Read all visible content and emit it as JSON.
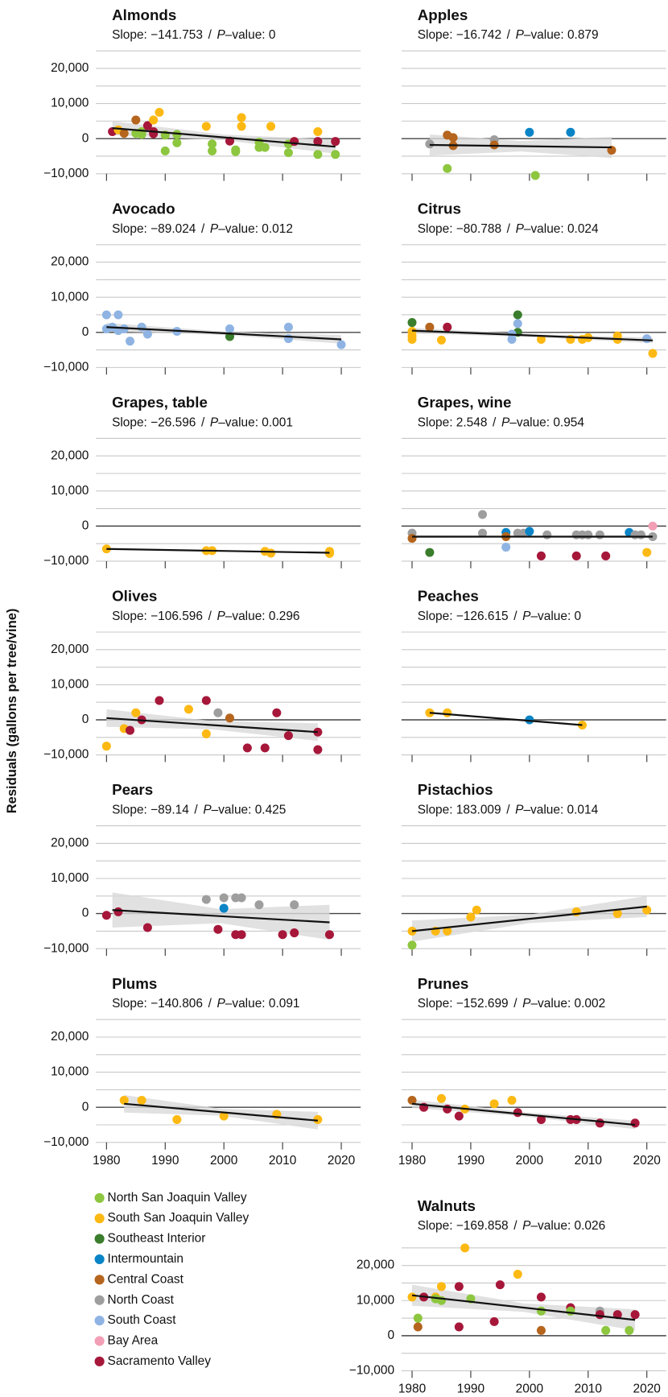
{
  "y_label": "Residuals (gallons per tree/vine)",
  "separator": "/",
  "p_symbol": "P",
  "shared_axes": {
    "xlim": [
      1978.2,
      2023.3
    ],
    "xticks": [
      1980,
      1990,
      2000,
      2010,
      2020
    ],
    "ylim": [
      -10000,
      25000
    ],
    "yticks": [
      {
        "value": -10000,
        "label": "−10,000"
      },
      0,
      {
        "value": 10000,
        "label": "10,000"
      },
      {
        "value": 20000,
        "label": "20,000"
      }
    ],
    "ygrid": [
      -5000,
      5000,
      15000,
      25000
    ]
  },
  "regions": [
    {
      "name": "North San Joaquin Valley",
      "color": "#8dc63f"
    },
    {
      "name": "South San Joaquin Valley",
      "color": "#fdb913"
    },
    {
      "name": "Southeast Interior",
      "color": "#3a7d2c"
    },
    {
      "name": "Intermountain",
      "color": "#0a84c6"
    },
    {
      "name": "Central Coast",
      "color": "#b5651d"
    },
    {
      "name": "North Coast",
      "color": "#9e9e9e"
    },
    {
      "name": "South Coast",
      "color": "#8fb4e3"
    },
    {
      "name": "Bay Area",
      "color": "#f29fb5"
    },
    {
      "name": "Sacramento Valley",
      "color": "#a6173a"
    }
  ],
  "chart_data": [
    {
      "type": "scatter",
      "title": "Almonds",
      "slope_text": "Slope: −141.753",
      "p_value_text": "–value: 0",
      "points": {
        "x": [
          1981,
          1982,
          1983,
          1985,
          1985,
          1986,
          1986,
          1987,
          1988,
          1988,
          1989,
          1988,
          1990,
          1990,
          1992,
          1992,
          1997,
          1998,
          1998,
          2001,
          2002,
          2002,
          2003,
          2003,
          2006,
          2006,
          2007,
          2008,
          2011,
          2011,
          2012,
          2016,
          2016,
          2016,
          2019,
          2019
        ],
        "y": [
          2000,
          2500,
          1500,
          5300,
          1500,
          1200,
          2000,
          3700,
          1400,
          5300,
          7500,
          2000,
          -3500,
          1000,
          1200,
          -1200,
          3500,
          -1500,
          -3500,
          -700,
          -3200,
          -3700,
          6000,
          3500,
          -2500,
          -1000,
          -2500,
          3500,
          -1500,
          -4000,
          -800,
          2000,
          -800,
          -4500,
          -800,
          -4500
        ],
        "region": [
          8,
          1,
          4,
          4,
          0,
          0,
          0,
          8,
          8,
          1,
          1,
          8,
          0,
          0,
          0,
          0,
          1,
          0,
          0,
          8,
          0,
          0,
          1,
          1,
          0,
          0,
          0,
          1,
          0,
          0,
          8,
          1,
          8,
          0,
          8,
          0
        ]
      },
      "fit": {
        "x": [
          1981,
          2019
        ],
        "y": [
          3000,
          -2300
        ]
      },
      "band": {
        "x": [
          1981,
          2000,
          2019
        ],
        "upper": [
          5000,
          1150,
          -300
        ],
        "lower": [
          1000,
          -450,
          -4300
        ]
      }
    },
    {
      "type": "scatter",
      "title": "Apples",
      "slope_text": "Slope: −16.742",
      "p_value_text": "–value: 0.879",
      "points": {
        "x": [
          1983,
          1986,
          1987,
          1987,
          1986,
          1994,
          1994,
          2000,
          2007,
          2001,
          2014
        ],
        "y": [
          -1500,
          1000,
          300,
          -2000,
          -8500,
          -300,
          -1800,
          1800,
          1800,
          -10500,
          -3300
        ],
        "region": [
          5,
          4,
          4,
          4,
          0,
          5,
          4,
          3,
          3,
          0,
          4
        ]
      },
      "fit": {
        "x": [
          1983,
          2014
        ],
        "y": [
          -1800,
          -2500
        ]
      },
      "band": {
        "x": [
          1983,
          1998.5,
          2014
        ],
        "upper": [
          1200,
          -650,
          500
        ],
        "lower": [
          -4800,
          -3650,
          -5500
        ]
      }
    },
    {
      "type": "scatter",
      "title": "Avocado",
      "slope_text": "Slope: −89.024",
      "p_value_text": "–value: 0.012",
      "points": {
        "x": [
          1980,
          1980,
          1981,
          1982,
          1982,
          1983,
          1984,
          1986,
          1987,
          1992,
          2001,
          2001,
          2011,
          2011,
          2020
        ],
        "y": [
          5000,
          1000,
          1500,
          5000,
          500,
          1000,
          -2500,
          1500,
          -500,
          300,
          1000,
          -1200,
          1500,
          -1800,
          -3500
        ],
        "region": [
          6,
          6,
          6,
          6,
          6,
          6,
          6,
          6,
          6,
          6,
          6,
          2,
          6,
          6,
          6
        ]
      },
      "fit": {
        "x": [
          1980,
          2020
        ],
        "y": [
          1500,
          -2000
        ]
      },
      "band": {
        "x": [
          1980,
          2000,
          2020
        ],
        "upper": [
          2700,
          250,
          -800
        ],
        "lower": [
          300,
          -750,
          -3200
        ]
      }
    },
    {
      "type": "scatter",
      "title": "Citrus",
      "slope_text": "Slope: −80.788",
      "p_value_text": "–value: 0.024",
      "points": {
        "x": [
          1980,
          1980,
          1980,
          1980,
          1983,
          1985,
          1986,
          1998,
          1998,
          1998,
          1997,
          1997,
          2002,
          2007,
          2009,
          2010,
          2015,
          2015,
          2020,
          2021
        ],
        "y": [
          2800,
          300,
          -1000,
          -2000,
          1500,
          -2200,
          1500,
          5000,
          2500,
          0,
          -500,
          -2000,
          -2000,
          -2000,
          -2000,
          -1500,
          -2000,
          -1000,
          -1800,
          -6000
        ],
        "region": [
          2,
          1,
          1,
          1,
          4,
          1,
          8,
          2,
          6,
          2,
          6,
          6,
          1,
          1,
          1,
          1,
          1,
          1,
          6,
          1
        ]
      },
      "fit": {
        "x": [
          1980,
          2021
        ],
        "y": [
          500,
          -2300
        ]
      },
      "band": {
        "x": [
          1980,
          2000.5,
          2021
        ],
        "upper": [
          1300,
          -500,
          -1500
        ],
        "lower": [
          -300,
          -1300,
          -3100
        ]
      }
    },
    {
      "type": "scatter",
      "title": "Grapes, table",
      "slope_text": "Slope: −26.596",
      "p_value_text": "–value: 0.001",
      "points": {
        "x": [
          1980,
          1997,
          1998,
          2007,
          2008,
          2018,
          2018
        ],
        "y": [
          -6500,
          -7000,
          -7000,
          -7200,
          -7700,
          -7200,
          -7800
        ],
        "region": [
          1,
          1,
          1,
          1,
          1,
          1,
          1
        ]
      },
      "fit": {
        "x": [
          1980,
          2018
        ],
        "y": [
          -6500,
          -7600
        ]
      },
      "band": {
        "x": [
          1980,
          1999,
          2018
        ],
        "upper": [
          -6300,
          -6850,
          -7400
        ],
        "lower": [
          -6700,
          -7250,
          -7800
        ]
      }
    },
    {
      "type": "scatter",
      "title": "Grapes, wine",
      "slope_text": "Slope: 2.548",
      "p_value_text": "–value: 0.954",
      "points": {
        "x": [
          1980,
          1980,
          1983,
          1992,
          1992,
          1996,
          1996,
          1996,
          1998,
          1999,
          2000,
          2002,
          2003,
          2008,
          2008,
          2009,
          2010,
          2012,
          2013,
          2017,
          2018,
          2019,
          2020,
          2021,
          2021
        ],
        "y": [
          -2000,
          -3500,
          -7500,
          3300,
          -2000,
          -1800,
          -3000,
          -6000,
          -2000,
          -2000,
          -1500,
          -8500,
          -2500,
          -2500,
          -8500,
          -2500,
          -2500,
          -2500,
          -8500,
          -1800,
          -2500,
          -2500,
          -7500,
          0,
          -3000
        ],
        "region": [
          5,
          4,
          2,
          5,
          5,
          3,
          4,
          6,
          5,
          5,
          3,
          8,
          5,
          5,
          8,
          5,
          5,
          5,
          8,
          3,
          5,
          5,
          1,
          7,
          5
        ]
      },
      "fit": {
        "x": [
          1980,
          2021
        ],
        "y": [
          -3000,
          -3000
        ]
      },
      "band": {
        "x": [
          1980,
          2000.5,
          2021
        ],
        "upper": [
          -2600,
          -2800,
          -2600
        ],
        "lower": [
          -3400,
          -3200,
          -3400
        ]
      }
    },
    {
      "type": "scatter",
      "title": "Olives",
      "slope_text": "Slope: −106.596",
      "p_value_text": "–value: 0.296",
      "points": {
        "x": [
          1980,
          1983,
          1984,
          1985,
          1986,
          1989,
          1994,
          1997,
          1997,
          1999,
          2001,
          2004,
          2007,
          2009,
          2011,
          2016,
          2016
        ],
        "y": [
          -7500,
          -2500,
          -3000,
          2000,
          0,
          5500,
          3000,
          5500,
          -4000,
          2000,
          500,
          -8000,
          -8000,
          2000,
          -4500,
          -3500,
          -8500
        ],
        "region": [
          1,
          1,
          8,
          1,
          8,
          8,
          1,
          8,
          1,
          5,
          4,
          8,
          8,
          8,
          8,
          8,
          8
        ]
      },
      "fit": {
        "x": [
          1980,
          2016
        ],
        "y": [
          500,
          -3500
        ]
      },
      "band": {
        "x": [
          1980,
          1998,
          2016
        ],
        "upper": [
          3000,
          -300,
          -1000
        ],
        "lower": [
          -2000,
          -2700,
          -6000
        ]
      }
    },
    {
      "type": "scatter",
      "title": "Peaches",
      "slope_text": "Slope: −126.615",
      "p_value_text": "–value: 0",
      "points": {
        "x": [
          1983,
          1986,
          2000,
          2009
        ],
        "y": [
          2000,
          2000,
          0,
          -1500
        ],
        "region": [
          1,
          1,
          3,
          1
        ]
      },
      "fit": {
        "x": [
          1983,
          2009
        ],
        "y": [
          2000,
          -1500
        ]
      }
    },
    {
      "type": "scatter",
      "title": "Pears",
      "slope_text": "Slope: −89.14",
      "p_value_text": "–value: 0.425",
      "points": {
        "x": [
          1980,
          1982,
          1987,
          1997,
          2000,
          2000,
          1999,
          2002,
          2003,
          2002,
          2003,
          2006,
          2010,
          2012,
          2012,
          2018
        ],
        "y": [
          -500,
          500,
          -4000,
          4000,
          4500,
          1500,
          -4500,
          4500,
          4500,
          -6000,
          -6000,
          2500,
          -6000,
          2500,
          -5500,
          -6000
        ],
        "region": [
          8,
          8,
          8,
          5,
          5,
          3,
          8,
          5,
          5,
          8,
          8,
          5,
          8,
          5,
          8,
          8
        ]
      },
      "fit": {
        "x": [
          1981,
          2018
        ],
        "y": [
          1000,
          -2500
        ]
      },
      "band": {
        "x": [
          1981,
          1999.5,
          2018
        ],
        "upper": [
          6000,
          1250,
          2500
        ],
        "lower": [
          -4000,
          -2750,
          -7500
        ]
      }
    },
    {
      "type": "scatter",
      "title": "Pistachios",
      "slope_text": "Slope: 183.009",
      "p_value_text": "–value: 0.014",
      "points": {
        "x": [
          1980,
          1980,
          1984,
          1986,
          1990,
          1991,
          2008,
          2015,
          2020
        ],
        "y": [
          -5000,
          -9000,
          -5000,
          -5000,
          -1000,
          1000,
          500,
          0,
          1000
        ],
        "region": [
          1,
          0,
          1,
          1,
          1,
          1,
          1,
          1,
          1
        ]
      },
      "fit": {
        "x": [
          1980,
          2020
        ],
        "y": [
          -5000,
          2000
        ]
      },
      "band": {
        "x": [
          1980,
          2000,
          2020
        ],
        "upper": [
          -2000,
          -300,
          5000
        ],
        "lower": [
          -8000,
          -2700,
          -1000
        ]
      }
    },
    {
      "type": "scatter",
      "title": "Plums",
      "slope_text": "Slope: −140.806",
      "p_value_text": "–value: 0.091",
      "points": {
        "x": [
          1983,
          1986,
          1992,
          2000,
          2009,
          2016
        ],
        "y": [
          2000,
          2000,
          -3500,
          -2500,
          -2000,
          -3500
        ],
        "region": [
          1,
          1,
          1,
          1,
          1,
          1
        ]
      },
      "fit": {
        "x": [
          1983,
          2016
        ],
        "y": [
          1000,
          -3800
        ]
      },
      "band": {
        "x": [
          1983,
          1999.5,
          2016
        ],
        "upper": [
          3500,
          -400,
          -1300
        ],
        "lower": [
          -1500,
          -2400,
          -6300
        ]
      }
    },
    {
      "type": "scatter",
      "title": "Prunes",
      "slope_text": "Slope: −152.699",
      "p_value_text": "–value: 0.002",
      "points": {
        "x": [
          1980,
          1982,
          1985,
          1986,
          1988,
          1989,
          1994,
          1997,
          1998,
          2002,
          2007,
          2008,
          2012,
          2018
        ],
        "y": [
          2000,
          0,
          2500,
          -500,
          -2500,
          -500,
          1000,
          2000,
          -1500,
          -3500,
          -3500,
          -3500,
          -4500,
          -4500
        ],
        "region": [
          4,
          8,
          1,
          8,
          8,
          1,
          1,
          1,
          8,
          8,
          8,
          8,
          8,
          8
        ]
      },
      "fit": {
        "x": [
          1980,
          2018
        ],
        "y": [
          1000,
          -5000
        ]
      },
      "band": {
        "x": [
          1980,
          1999,
          2018
        ],
        "upper": [
          2200,
          -1400,
          -3800
        ],
        "lower": [
          -200,
          -2600,
          -6200
        ]
      }
    },
    {
      "type": "scatter",
      "title": "Walnuts",
      "slope_text": "Slope: −169.858",
      "p_value_text": "–value: 0.026",
      "points": {
        "x": [
          1980,
          1981,
          1981,
          1982,
          1984,
          1984,
          1985,
          1985,
          1988,
          1988,
          1989,
          1990,
          1994,
          1995,
          1998,
          2002,
          2002,
          2002,
          2007,
          2007,
          2012,
          2012,
          2013,
          2015,
          2017,
          2018
        ],
        "y": [
          11000,
          5000,
          2500,
          11000,
          11000,
          10500,
          14000,
          10000,
          14000,
          2500,
          25000,
          10500,
          4000,
          14500,
          17500,
          11000,
          1500,
          7000,
          8000,
          7000,
          7000,
          6000,
          1500,
          6000,
          1500,
          6000
        ],
        "region": [
          1,
          0,
          4,
          8,
          1,
          0,
          1,
          0,
          8,
          8,
          1,
          0,
          8,
          8,
          1,
          8,
          4,
          0,
          8,
          0,
          5,
          8,
          0,
          8,
          0,
          8
        ]
      },
      "fit": {
        "x": [
          1980,
          2018
        ],
        "y": [
          11500,
          4500
        ]
      },
      "band": {
        "x": [
          1980,
          1999,
          2018
        ],
        "upper": [
          14500,
          9200,
          7500
        ],
        "lower": [
          8500,
          6800,
          1500
        ]
      }
    }
  ]
}
